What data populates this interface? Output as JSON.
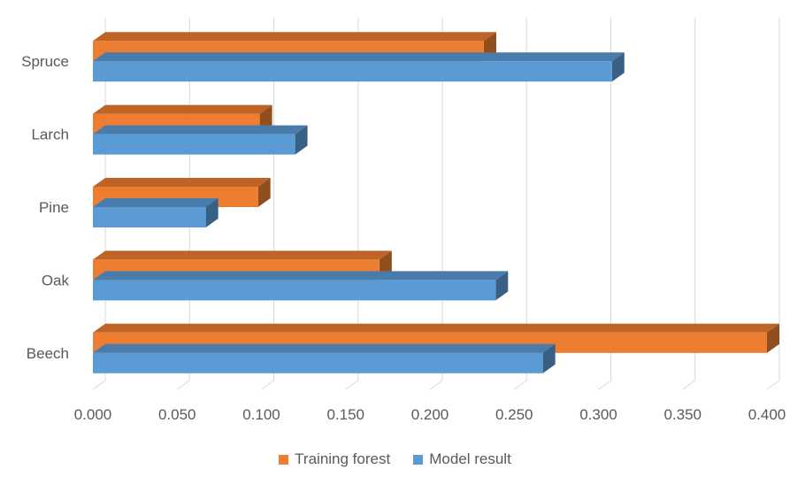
{
  "chart_data": {
    "type": "bar",
    "orientation": "horizontal",
    "style": "3d",
    "categories": [
      "Beech",
      "Oak",
      "Pine",
      "Larch",
      "Spruce"
    ],
    "series": [
      {
        "name": "Training forest",
        "color": "#ED7D31",
        "values": [
          0.4,
          0.17,
          0.098,
          0.099,
          0.232
        ]
      },
      {
        "name": "Model result",
        "color": "#5B9BD5",
        "values": [
          0.267,
          0.239,
          0.067,
          0.12,
          0.308
        ]
      }
    ],
    "xlim": [
      0,
      0.4
    ],
    "xticks": [
      "0.000",
      "0.050",
      "0.100",
      "0.150",
      "0.200",
      "0.250",
      "0.300",
      "0.350",
      "0.400"
    ],
    "grid": true,
    "legend_position": "bottom",
    "title": "",
    "xlabel": "",
    "ylabel": ""
  }
}
